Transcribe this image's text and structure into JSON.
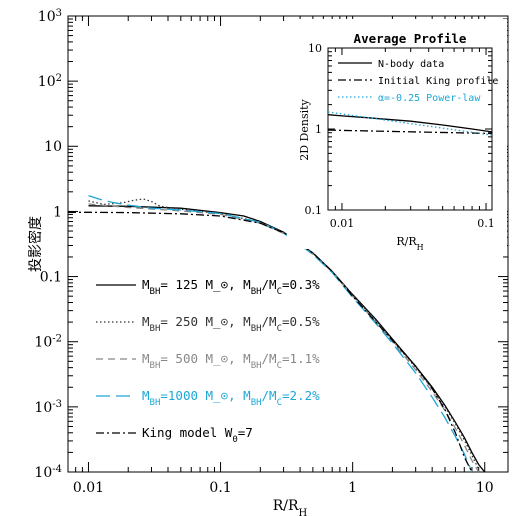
{
  "chart_data": [
    {
      "type": "line",
      "title": "",
      "xlabel": "R/R_H",
      "ylabel": "投影密度",
      "xscale": "log",
      "yscale": "log",
      "xlim": [
        0.007,
        15
      ],
      "ylim": [
        0.0001,
        1000
      ],
      "x_ticks": [
        "0.01",
        "0.1",
        "1",
        "10"
      ],
      "y_ticks": [
        "10^-4",
        "10^-3",
        "10^-2",
        "0.1",
        "1",
        "10",
        "10^2",
        "10^3"
      ],
      "grid": false,
      "legend_position": "lower-left",
      "series": [
        {
          "name": "M_BH= 125 M_⊙, M_BH/M_C=0.3%",
          "color": "#000000",
          "dash": "solid",
          "x": [
            0.01,
            0.02,
            0.05,
            0.1,
            0.15,
            0.2,
            0.3,
            0.5,
            0.7,
            1.0,
            1.5,
            2.0,
            3.0,
            4.0,
            5.0,
            6.0,
            7.0,
            8.0,
            9.0,
            10.0
          ],
          "y": [
            1.22,
            1.2,
            1.12,
            0.96,
            0.85,
            0.7,
            0.48,
            0.23,
            0.12,
            0.053,
            0.022,
            0.011,
            0.0042,
            0.002,
            0.00105,
            0.00058,
            0.00034,
            0.0002,
            0.00013,
            0.0001
          ]
        },
        {
          "name": "M_BH= 250 M_⊙, M_BH/M_C=0.5%",
          "color": "#333333",
          "dash": "dotted",
          "x": [
            0.01,
            0.013,
            0.018,
            0.022,
            0.026,
            0.03,
            0.035,
            0.05,
            0.1,
            0.2,
            0.3,
            0.5,
            0.7,
            1.0,
            1.5,
            2.0,
            3.0,
            4.0,
            5.0,
            6.0,
            7.0,
            8.0,
            9.0
          ],
          "y": [
            1.45,
            1.28,
            1.35,
            1.48,
            1.55,
            1.42,
            1.2,
            1.08,
            0.93,
            0.68,
            0.47,
            0.23,
            0.12,
            0.052,
            0.021,
            0.0105,
            0.004,
            0.0019,
            0.001,
            0.00055,
            0.00031,
            0.00018,
            0.00011
          ]
        },
        {
          "name": "M_BH= 500 M_⊙, M_BH/M_C=1.1%",
          "color": "#888888",
          "dash": "dashed",
          "x": [
            0.01,
            0.02,
            0.05,
            0.1,
            0.2,
            0.3,
            0.5,
            0.7,
            1.0,
            1.5,
            2.0,
            3.0,
            4.0,
            5.0,
            6.0,
            7.0,
            8.0,
            9.0
          ],
          "y": [
            1.3,
            1.15,
            1.02,
            0.9,
            0.66,
            0.46,
            0.22,
            0.118,
            0.05,
            0.02,
            0.01,
            0.0037,
            0.0017,
            0.00088,
            0.00047,
            0.00026,
            0.00015,
            0.0001
          ]
        },
        {
          "name": "M_BH=1000 M_⊙, M_BH/M_C=2.2%",
          "color": "#1fa7d6",
          "dash": "longdash",
          "x": [
            0.01,
            0.012,
            0.015,
            0.02,
            0.03,
            0.05,
            0.1,
            0.2,
            0.3,
            0.5,
            0.7,
            1.0,
            1.5,
            2.0,
            3.0,
            4.0,
            5.0,
            6.0,
            7.0,
            8.0
          ],
          "y": [
            1.75,
            1.55,
            1.38,
            1.25,
            1.12,
            1.05,
            0.93,
            0.68,
            0.47,
            0.22,
            0.115,
            0.048,
            0.019,
            0.0095,
            0.0033,
            0.0014,
            0.00068,
            0.00035,
            0.00019,
            0.0001
          ]
        },
        {
          "name": "King model W_0=7",
          "color": "#000000",
          "dash": "dashdot",
          "x": [
            0.007,
            0.01,
            0.02,
            0.05,
            0.1,
            0.2,
            0.3,
            0.5,
            0.7,
            1.0,
            1.5,
            2.0,
            3.0,
            4.0,
            5.0,
            6.0,
            7.0,
            8.0
          ],
          "y": [
            0.97,
            0.97,
            0.96,
            0.92,
            0.85,
            0.66,
            0.47,
            0.23,
            0.12,
            0.05,
            0.02,
            0.0105,
            0.0042,
            0.0019,
            0.0009,
            0.0004,
            0.00017,
            0.0001
          ]
        }
      ]
    },
    {
      "type": "line",
      "title": "Average Profile",
      "xlabel": "R/R_H",
      "ylabel": "2D Density",
      "xscale": "log",
      "yscale": "log",
      "xlim": [
        0.008,
        0.11
      ],
      "ylim": [
        0.1,
        10
      ],
      "x_ticks": [
        "0.01",
        "0.1"
      ],
      "y_ticks": [
        "0.1",
        "1",
        "10"
      ],
      "legend_position": "top-right",
      "series": [
        {
          "name": "N-body data",
          "color": "#000000",
          "dash": "solid",
          "x": [
            0.008,
            0.01,
            0.015,
            0.02,
            0.03,
            0.05,
            0.08,
            0.11
          ],
          "y": [
            1.5,
            1.45,
            1.38,
            1.32,
            1.25,
            1.12,
            1.0,
            0.92
          ]
        },
        {
          "name": "Initial King profile",
          "color": "#000000",
          "dash": "dashdot",
          "x": [
            0.008,
            0.11
          ],
          "y": [
            0.97,
            0.88
          ]
        },
        {
          "name": "α=-0.25 Power-law",
          "color": "#1fa7d6",
          "dash": "dotted",
          "x": [
            0.008,
            0.11
          ],
          "y": [
            1.62,
            0.84
          ]
        }
      ]
    }
  ]
}
